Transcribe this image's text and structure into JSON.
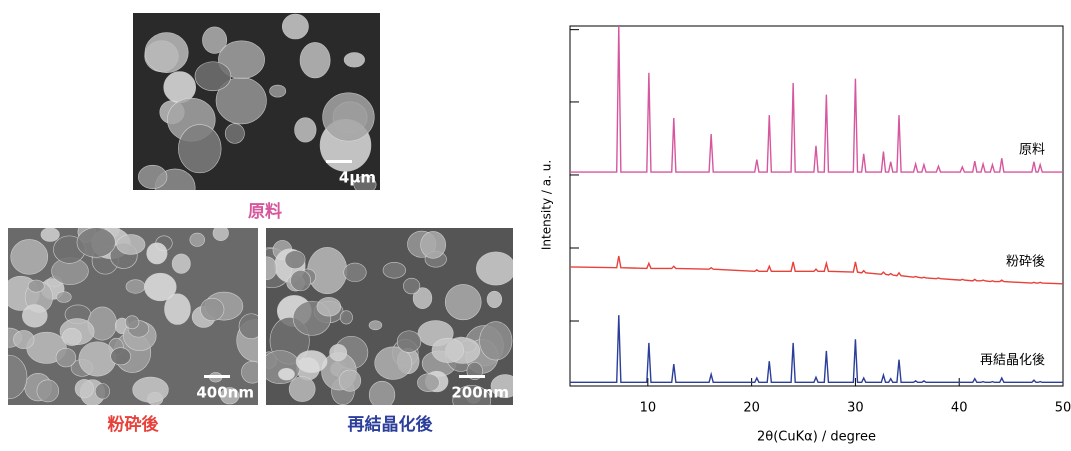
{
  "images": [
    {
      "caption": "原料",
      "scale_bar": "4µm"
    },
    {
      "caption": "粉砕後",
      "scale_bar": "400nm"
    },
    {
      "caption": "再結晶化後",
      "scale_bar": "200nm"
    }
  ],
  "chart_data": {
    "type": "line",
    "xlabel": "2θ(CuKα) / degree",
    "ylabel": "Intensity / a. u.",
    "x": [
      2.5,
      7.0,
      7.2,
      7.4,
      9.9,
      10.1,
      10.3,
      12.3,
      12.5,
      12.7,
      15.9,
      16.1,
      16.3,
      20.3,
      20.5,
      20.7,
      21.5,
      21.7,
      21.9,
      23.8,
      24.0,
      24.2,
      26.0,
      26.2,
      26.4,
      27.0,
      27.2,
      27.4,
      29.8,
      30.0,
      30.2,
      30.6,
      30.8,
      31.0,
      32.5,
      32.7,
      32.9,
      33.2,
      33.4,
      33.6,
      34.0,
      34.2,
      34.4,
      35.6,
      35.8,
      36.0,
      36.4,
      36.6,
      36.8,
      37.8,
      38.0,
      38.2,
      40.1,
      40.3,
      40.5,
      41.3,
      41.5,
      41.7,
      42.1,
      42.3,
      42.5,
      43.0,
      43.2,
      43.4,
      43.9,
      44.1,
      44.3,
      47.0,
      47.2,
      47.4,
      47.6,
      47.8,
      48.0,
      50
    ],
    "series": [
      {
        "name": "原料",
        "color": "#d6579e",
        "values": [
          2.93,
          2.93,
          4.93,
          2.93,
          2.93,
          4.29,
          2.93,
          2.93,
          3.67,
          2.93,
          2.93,
          3.45,
          2.93,
          2.93,
          3.1,
          2.93,
          2.93,
          3.71,
          2.93,
          2.93,
          4.15,
          2.93,
          2.93,
          3.29,
          2.93,
          2.93,
          3.99,
          2.93,
          2.93,
          4.21,
          2.93,
          2.93,
          3.18,
          2.93,
          2.93,
          3.21,
          2.93,
          2.93,
          3.07,
          2.93,
          2.93,
          3.71,
          2.93,
          2.93,
          3.04,
          2.93,
          2.93,
          3.03,
          2.93,
          2.93,
          3.01,
          2.93,
          2.93,
          3.0,
          2.93,
          2.93,
          3.08,
          2.93,
          2.93,
          3.04,
          2.93,
          2.93,
          3.03,
          2.93,
          2.93,
          3.12,
          2.93,
          2.93,
          3.07,
          2.93,
          2.93,
          3.03,
          2.93,
          2.93
        ]
      },
      {
        "name": "粉砕後",
        "color": "#e8413a",
        "values": [
          1.63,
          1.62,
          1.78,
          1.62,
          1.61,
          1.68,
          1.61,
          1.61,
          1.64,
          1.61,
          1.6,
          1.62,
          1.6,
          1.57,
          1.59,
          1.57,
          1.57,
          1.64,
          1.57,
          1.57,
          1.7,
          1.57,
          1.57,
          1.6,
          1.57,
          1.57,
          1.68,
          1.57,
          1.56,
          1.7,
          1.56,
          1.55,
          1.58,
          1.55,
          1.53,
          1.56,
          1.53,
          1.52,
          1.54,
          1.52,
          1.51,
          1.55,
          1.51,
          1.49,
          1.5,
          1.49,
          1.48,
          1.49,
          1.48,
          1.47,
          1.48,
          1.47,
          1.45,
          1.46,
          1.45,
          1.44,
          1.46,
          1.44,
          1.44,
          1.45,
          1.44,
          1.43,
          1.44,
          1.43,
          1.43,
          1.45,
          1.43,
          1.41,
          1.42,
          1.41,
          1.41,
          1.42,
          1.41,
          1.4
        ]
      },
      {
        "name": "再結晶化後",
        "color": "#2b3f9a",
        "values": [
          0.05,
          0.05,
          0.97,
          0.05,
          0.05,
          0.59,
          0.05,
          0.05,
          0.3,
          0.05,
          0.05,
          0.16,
          0.05,
          0.05,
          0.11,
          0.05,
          0.05,
          0.34,
          0.05,
          0.05,
          0.59,
          0.05,
          0.05,
          0.12,
          0.05,
          0.05,
          0.48,
          0.05,
          0.05,
          0.64,
          0.05,
          0.05,
          0.11,
          0.05,
          0.05,
          0.15,
          0.05,
          0.05,
          0.1,
          0.05,
          0.05,
          0.36,
          0.05,
          0.05,
          0.07,
          0.05,
          0.05,
          0.07,
          0.05,
          0.05,
          0.05,
          0.05,
          0.05,
          0.05,
          0.05,
          0.05,
          0.1,
          0.05,
          0.05,
          0.06,
          0.05,
          0.05,
          0.06,
          0.05,
          0.05,
          0.11,
          0.05,
          0.05,
          0.08,
          0.05,
          0.05,
          0.06,
          0.05,
          0.05
        ]
      }
    ],
    "xlim": [
      2.5,
      50
    ],
    "xticks": [
      10,
      20,
      30,
      40,
      50
    ],
    "ylim": [
      0,
      4.93
    ],
    "yticks": [
      0.89,
      1.89,
      2.89,
      3.89,
      4.88
    ]
  }
}
